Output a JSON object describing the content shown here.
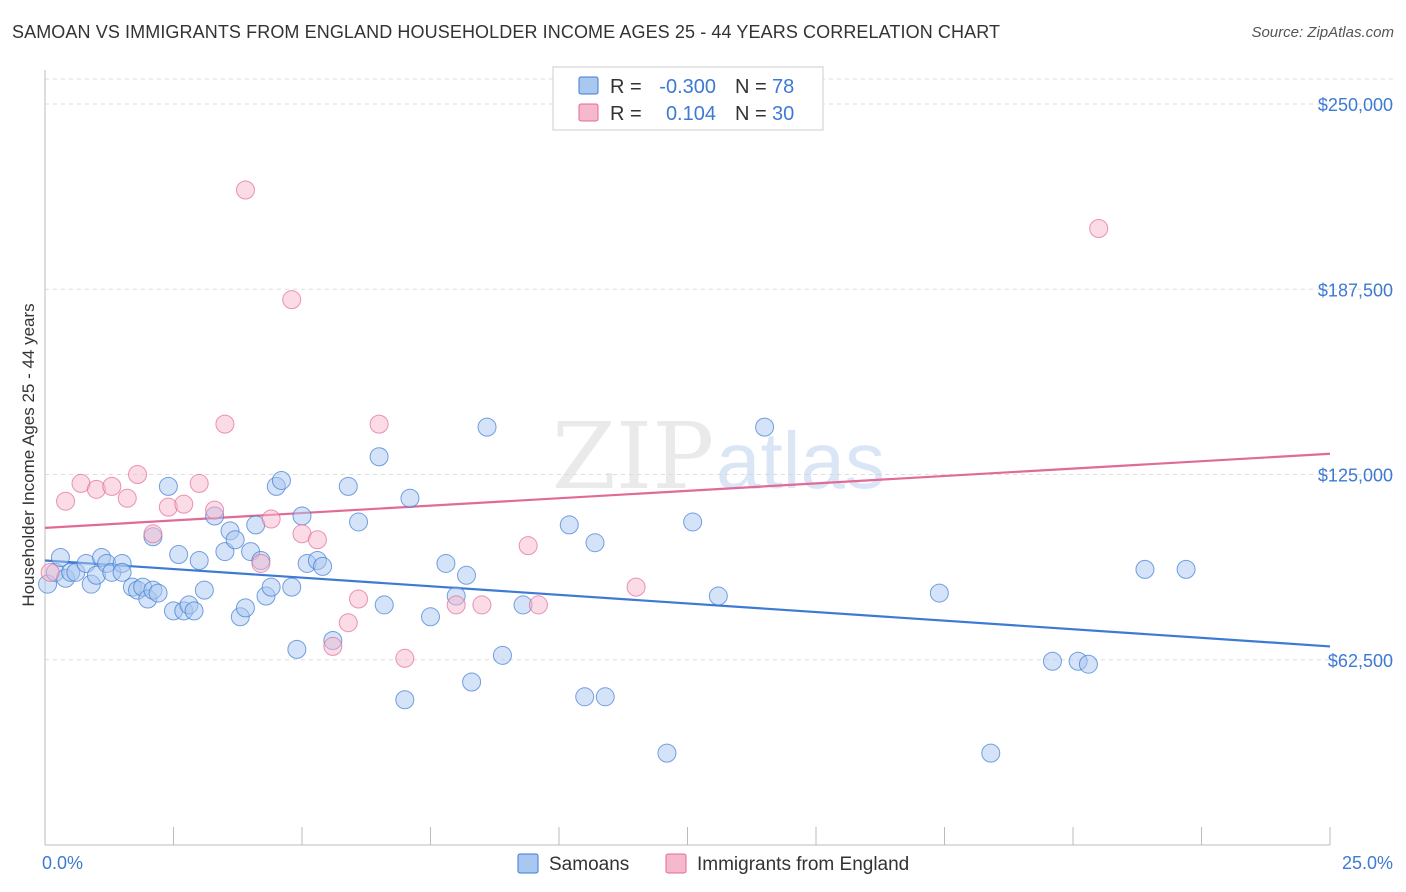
{
  "title": "SAMOAN VS IMMIGRANTS FROM ENGLAND HOUSEHOLDER INCOME AGES 25 - 44 YEARS CORRELATION CHART",
  "source": "Source: ZipAtlas.com",
  "watermark": {
    "zip": "ZIP",
    "atlas": "atlas"
  },
  "colors": {
    "blue": "#3d7ad4",
    "blue_fill": "#a9c8ef",
    "pink": "#e26a98",
    "pink_fill": "#f5b8cd",
    "axis_label": "#3d7ad4",
    "grid": "#dddddd"
  },
  "stats_legend": [
    {
      "r_label": "R =",
      "r_value": "-0.300",
      "n_label": "N =",
      "n_value": "78"
    },
    {
      "r_label": "R =",
      "r_value": "0.104",
      "n_label": "N =",
      "n_value": "30"
    }
  ],
  "chart_data": {
    "type": "scatter",
    "title": "SAMOAN VS IMMIGRANTS FROM ENGLAND HOUSEHOLDER INCOME AGES 25 - 44 YEARS CORRELATION CHART",
    "ylabel": "Householder Income Ages 25 - 44 years",
    "xlabel": "",
    "xlim": [
      0,
      25
    ],
    "ylim": [
      0,
      262500
    ],
    "x_tick_labels": [
      "0.0%",
      "25.0%"
    ],
    "y_ticks": [
      62500,
      125000,
      187500,
      250000
    ],
    "y_tick_labels": [
      "$62,500",
      "$125,000",
      "$187,500",
      "$250,000"
    ],
    "grid": "horizontal dashed",
    "legend_position": "bottom",
    "series": [
      {
        "name": "Samoans",
        "color": "#3d7ad4",
        "r": -0.3,
        "n": 78,
        "trend": {
          "x": [
            0,
            25
          ],
          "y": [
            96000,
            67000
          ]
        },
        "points": [
          [
            0.05,
            88000
          ],
          [
            0.2,
            92000
          ],
          [
            0.3,
            97000
          ],
          [
            0.4,
            90000
          ],
          [
            0.5,
            92000
          ],
          [
            0.6,
            92000
          ],
          [
            0.8,
            95000
          ],
          [
            0.9,
            88000
          ],
          [
            1.0,
            91000
          ],
          [
            1.1,
            97000
          ],
          [
            1.2,
            95000
          ],
          [
            1.3,
            92000
          ],
          [
            1.5,
            95000
          ],
          [
            1.5,
            92000
          ],
          [
            1.7,
            87000
          ],
          [
            1.8,
            86000
          ],
          [
            1.9,
            87000
          ],
          [
            2.0,
            83000
          ],
          [
            2.1,
            104000
          ],
          [
            2.1,
            86000
          ],
          [
            2.2,
            85000
          ],
          [
            2.4,
            121000
          ],
          [
            2.5,
            79000
          ],
          [
            2.6,
            98000
          ],
          [
            2.7,
            79000
          ],
          [
            2.8,
            81000
          ],
          [
            2.9,
            79000
          ],
          [
            3.0,
            96000
          ],
          [
            3.1,
            86000
          ],
          [
            3.3,
            111000
          ],
          [
            3.5,
            99000
          ],
          [
            3.6,
            106000
          ],
          [
            3.7,
            103000
          ],
          [
            3.8,
            77000
          ],
          [
            3.9,
            80000
          ],
          [
            4.0,
            99000
          ],
          [
            4.1,
            108000
          ],
          [
            4.2,
            96000
          ],
          [
            4.3,
            84000
          ],
          [
            4.4,
            87000
          ],
          [
            4.5,
            121000
          ],
          [
            4.6,
            123000
          ],
          [
            4.8,
            87000
          ],
          [
            4.9,
            66000
          ],
          [
            5.0,
            111000
          ],
          [
            5.1,
            95000
          ],
          [
            5.3,
            96000
          ],
          [
            5.4,
            94000
          ],
          [
            5.6,
            69000
          ],
          [
            5.9,
            121000
          ],
          [
            6.1,
            109000
          ],
          [
            6.5,
            131000
          ],
          [
            6.6,
            81000
          ],
          [
            7.1,
            117000
          ],
          [
            7.0,
            49000
          ],
          [
            7.5,
            77000
          ],
          [
            7.8,
            95000
          ],
          [
            8.0,
            84000
          ],
          [
            8.2,
            91000
          ],
          [
            8.3,
            55000
          ],
          [
            8.6,
            141000
          ],
          [
            8.9,
            64000
          ],
          [
            9.3,
            81000
          ],
          [
            10.2,
            108000
          ],
          [
            10.5,
            50000
          ],
          [
            10.7,
            102000
          ],
          [
            10.9,
            50000
          ],
          [
            12.1,
            31000
          ],
          [
            12.6,
            109000
          ],
          [
            13.1,
            84000
          ],
          [
            14.0,
            141000
          ],
          [
            17.4,
            85000
          ],
          [
            18.4,
            31000
          ],
          [
            19.6,
            62000
          ],
          [
            20.1,
            62000
          ],
          [
            20.3,
            61000
          ],
          [
            21.4,
            93000
          ],
          [
            22.2,
            93000
          ]
        ]
      },
      {
        "name": "Immigrants from England",
        "color": "#e26a98",
        "r": 0.104,
        "n": 30,
        "trend": {
          "x": [
            0,
            25
          ],
          "y": [
            107000,
            132000
          ]
        },
        "points": [
          [
            0.1,
            92000
          ],
          [
            0.4,
            116000
          ],
          [
            0.7,
            122000
          ],
          [
            1.0,
            120000
          ],
          [
            1.3,
            121000
          ],
          [
            1.6,
            117000
          ],
          [
            1.8,
            125000
          ],
          [
            2.1,
            105000
          ],
          [
            2.4,
            114000
          ],
          [
            2.7,
            115000
          ],
          [
            3.0,
            122000
          ],
          [
            3.3,
            113000
          ],
          [
            3.5,
            142000
          ],
          [
            3.9,
            221000
          ],
          [
            4.2,
            95000
          ],
          [
            4.4,
            110000
          ],
          [
            4.8,
            184000
          ],
          [
            5.0,
            105000
          ],
          [
            5.3,
            103000
          ],
          [
            5.6,
            67000
          ],
          [
            5.9,
            75000
          ],
          [
            6.1,
            83000
          ],
          [
            6.5,
            142000
          ],
          [
            7.0,
            63000
          ],
          [
            8.0,
            81000
          ],
          [
            8.5,
            81000
          ],
          [
            9.4,
            101000
          ],
          [
            9.6,
            81000
          ],
          [
            11.5,
            87000
          ],
          [
            20.5,
            208000
          ]
        ]
      }
    ]
  }
}
